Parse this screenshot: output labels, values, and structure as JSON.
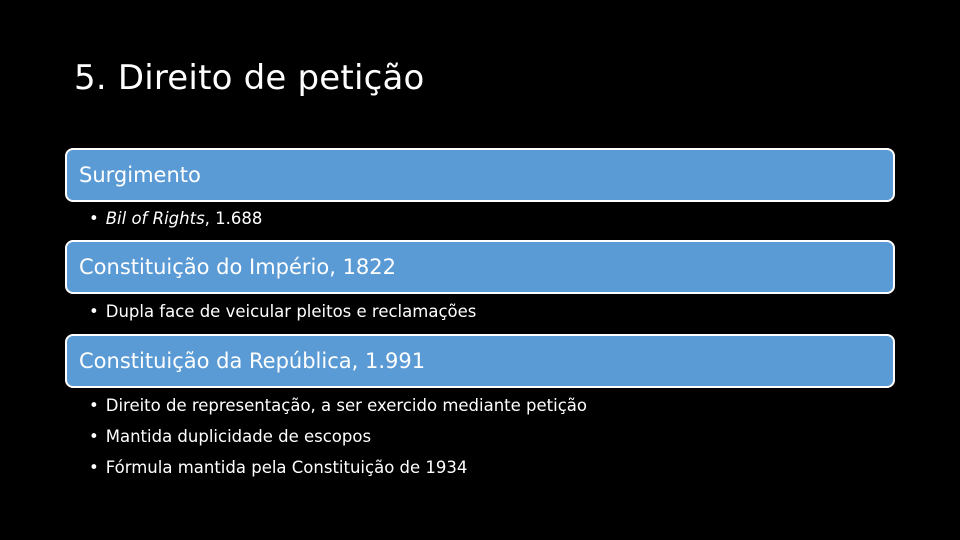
{
  "slide": {
    "title": "5. Direito de petição"
  },
  "sections": [
    {
      "header": "Surgimento",
      "bullets": [
        {
          "italic_part": "Bil of Rights",
          "rest": ", 1.688"
        }
      ]
    },
    {
      "header": "Constituição do Império, 1822",
      "bullets": [
        {
          "text": "Dupla face de veicular pleitos e reclamações"
        }
      ]
    },
    {
      "header": "Constituição da República, 1.991",
      "bullets": [
        {
          "text": "Direito de representação, a ser exercido mediante petição"
        },
        {
          "text": "Mantida duplicidade de escopos"
        },
        {
          "text": "Fórmula mantida pela Constituição de 1934"
        }
      ]
    }
  ],
  "bullet_char": "•",
  "colors": {
    "background": "#000000",
    "header_fill": "#5b9bd5",
    "header_border": "#ffffff",
    "text": "#ffffff"
  }
}
